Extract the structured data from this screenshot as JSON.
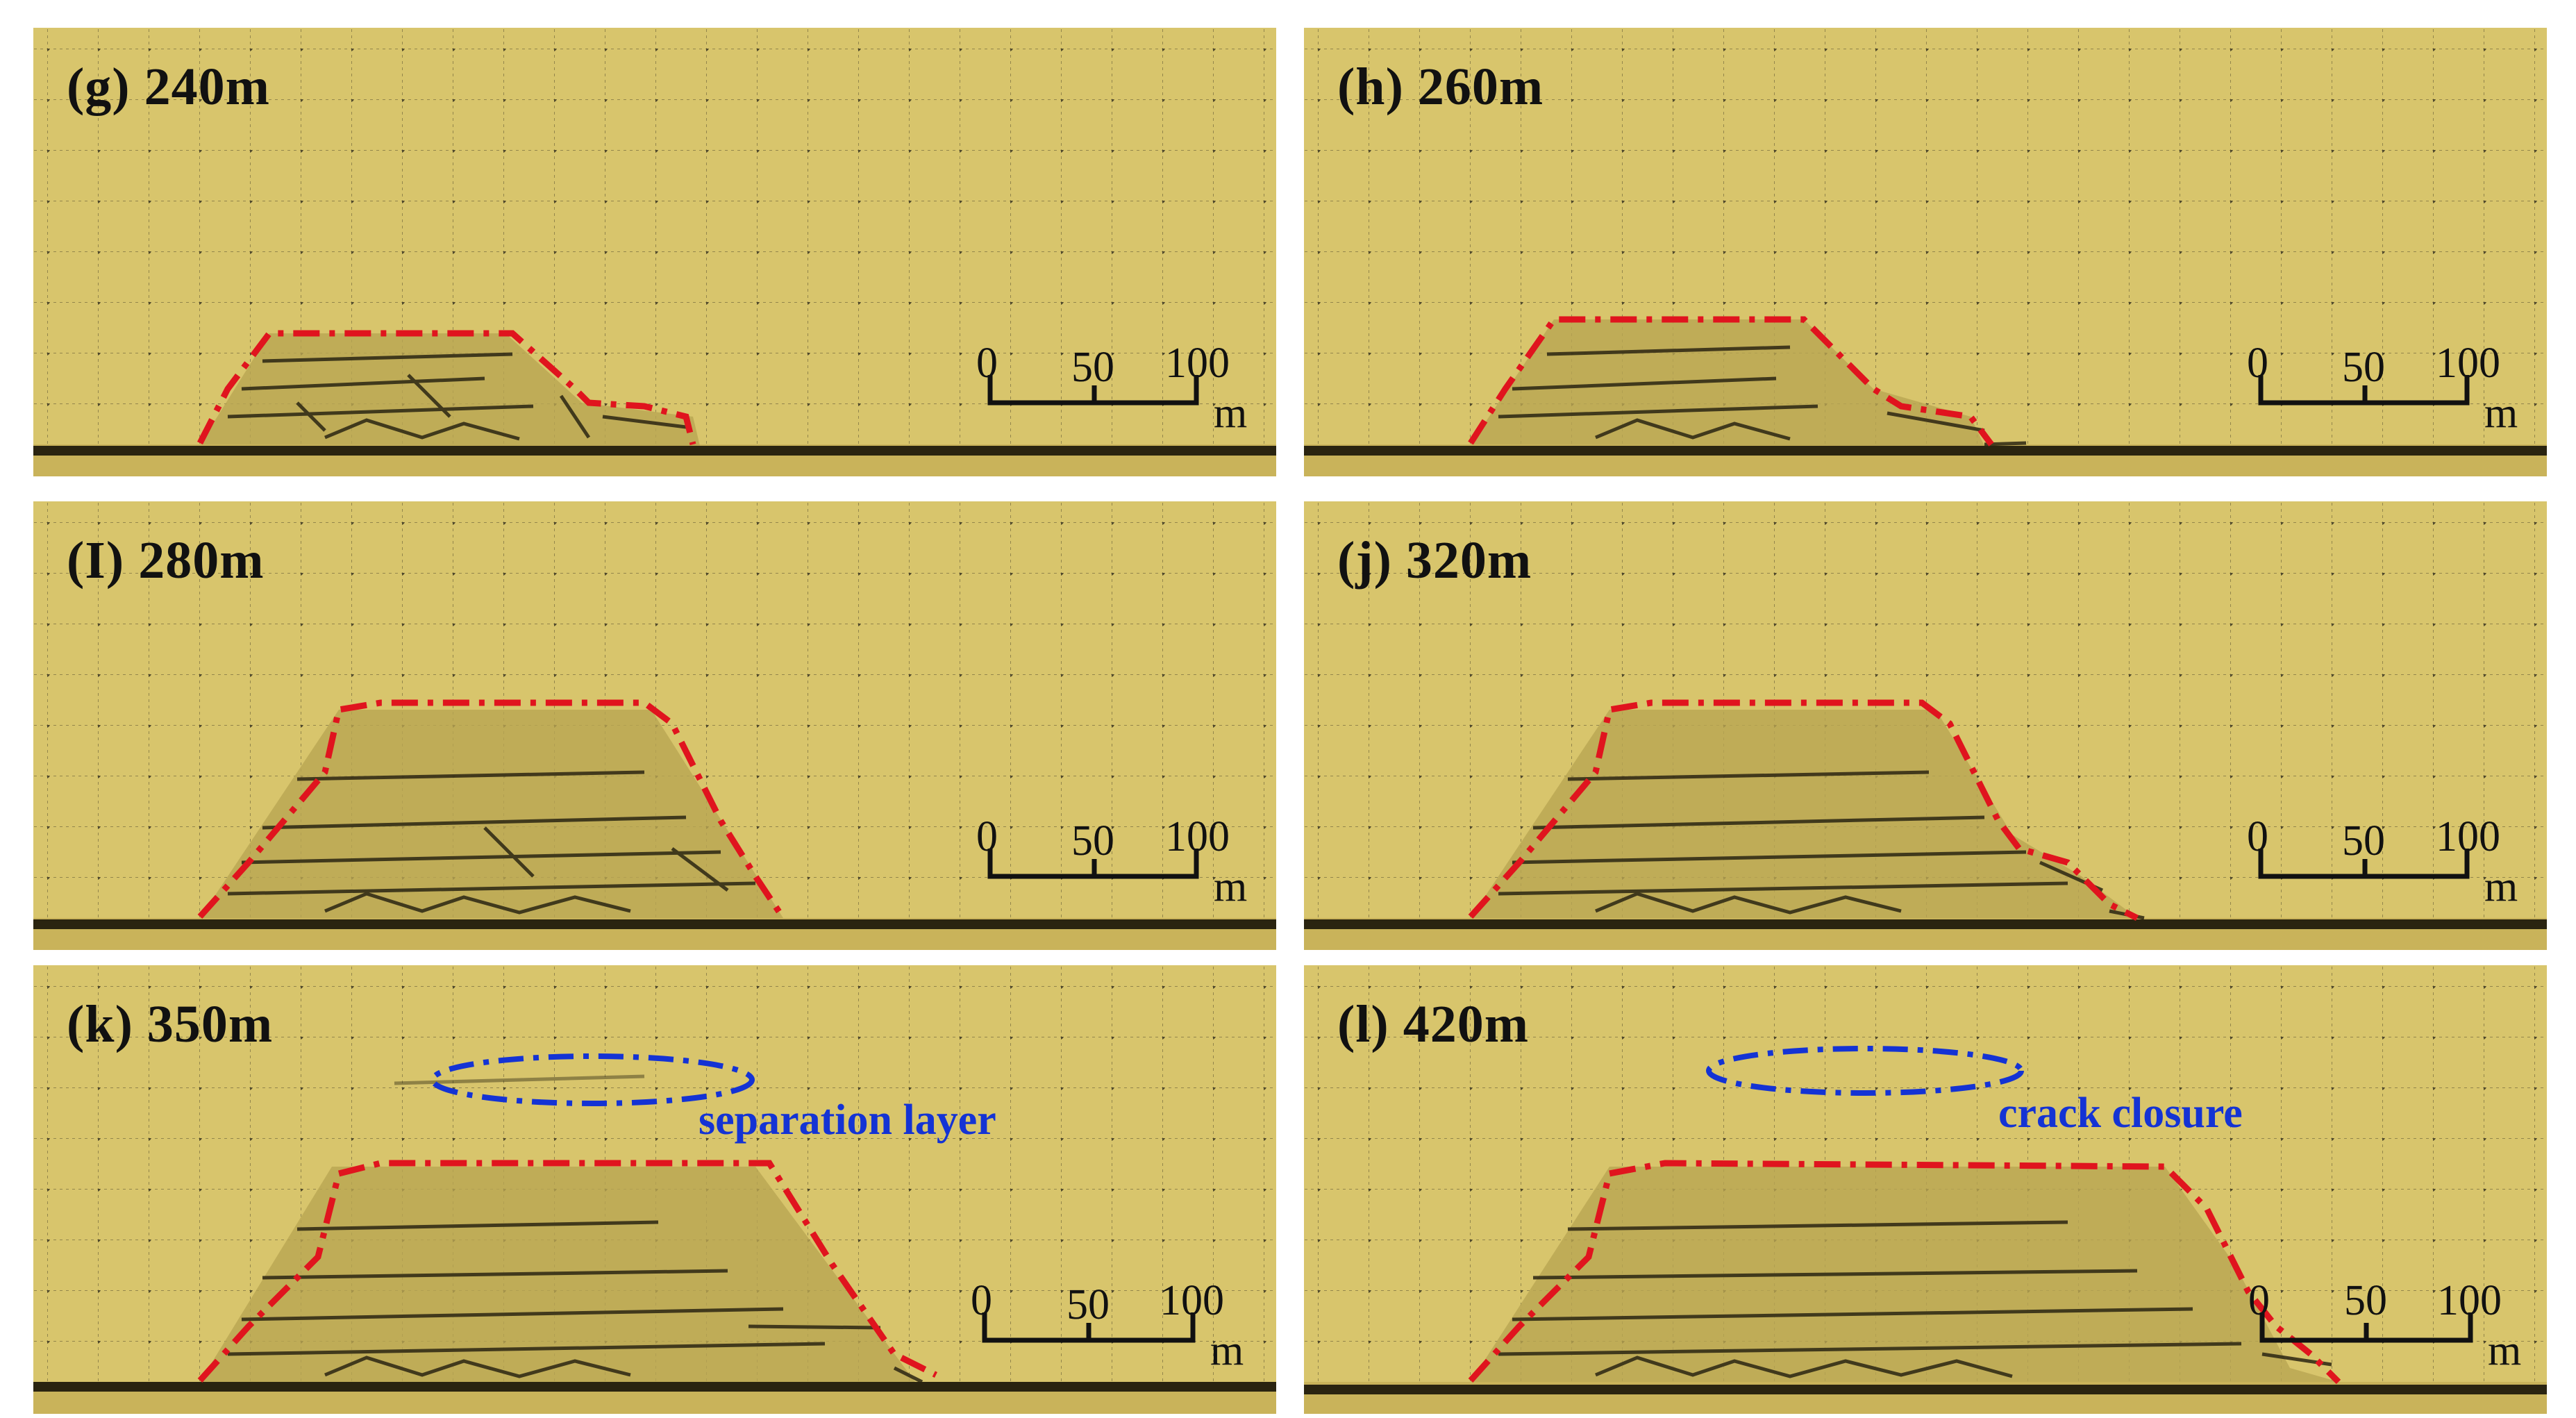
{
  "panels": [
    {
      "label": "(g) 240m"
    },
    {
      "label": "(h) 260m"
    },
    {
      "label": "(I) 280m"
    },
    {
      "label": "(j) 320m"
    },
    {
      "label": "(k) 350m",
      "annotation": "separation layer"
    },
    {
      "label": "(l) 420m",
      "annotation": "crack closure"
    }
  ],
  "scale_bar": {
    "ticks": [
      "0",
      "50",
      "100"
    ],
    "unit": "m"
  },
  "colors": {
    "model_background": "#d8c56c",
    "caving_outline": "#e0141e",
    "annotation": "#1433d4",
    "grid": "#5a5230"
  }
}
